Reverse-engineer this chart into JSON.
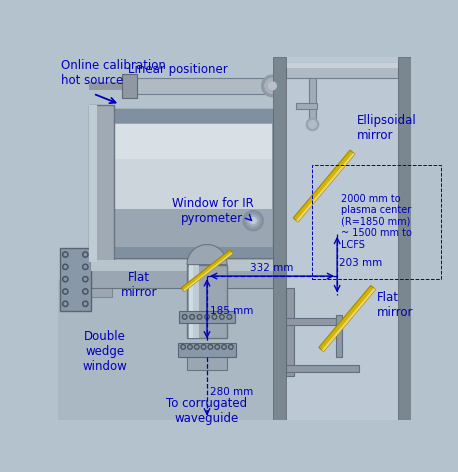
{
  "bg_color": "#b4c2ce",
  "left_bg": "#b0bec8",
  "right_bg": "#bcc8d4",
  "wall_color": "#7a8690",
  "wall_edge": "#5a6268",
  "cyl_body": "#a8b0bc",
  "cyl_light": "#c8d0d8",
  "cyl_dark": "#8090a0",
  "cyl_highlight": "#d4dce4",
  "metal_mid": "#9aa4ae",
  "metal_light": "#b8c4cc",
  "metal_dark": "#6a7480",
  "flange_color": "#8898a8",
  "bolt_color": "#5a6470",
  "mirror_color": "#d4b400",
  "mirror_edge": "#a08800",
  "mirror_back": "#e8d878",
  "label_color": "#0000bb",
  "dim_color": "#0000bb",
  "labels": {
    "online_calibration": "Online calibration\nhot source",
    "linear_positioner": "Linear positioner",
    "window_ir": "Window for IR\npyrometer",
    "flat_mirror_left": "Flat\nmirror",
    "flat_mirror_right": "Flat\nmirror",
    "ellipsoidal_mirror": "Ellipsoidal\nmirror",
    "double_wedge": "Double\nwedge\nwindow",
    "corrugated": "To corrugated\nwaveguide",
    "plasma_center": "2000 mm to\nplasma center\n(R=1850 mm)\n~ 1500 mm to\nLCFS",
    "dim_332": "332 mm",
    "dim_185": "185 mm",
    "dim_280": "280 mm",
    "dim_203": "203 mm"
  }
}
